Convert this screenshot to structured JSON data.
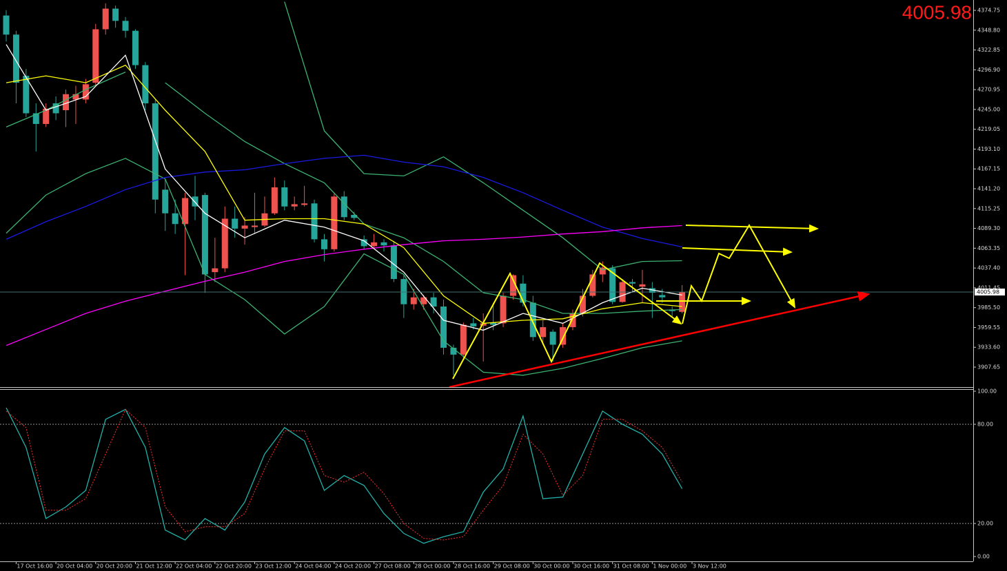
{
  "chart_data": [
    {
      "type": "candlestick",
      "last_price": 4005.98,
      "xlim": [
        -0.624,
        97.29
      ],
      "ylim": [
        3881.5,
        4388.3
      ],
      "yticks": [
        4374.75,
        {
          "value": 4348.8,
          "label": "4348.80"
        },
        4322.85,
        {
          "value": 4296.9,
          "label": "4296.90"
        },
        4270.95,
        {
          "value": 4245,
          "label": "4245.00"
        },
        4219.05,
        {
          "value": 4193.1,
          "label": "4193.10"
        },
        4167.15,
        {
          "value": 4141.2,
          "label": "4141.20"
        },
        4115.25,
        {
          "value": 4089.3,
          "label": "4089.30"
        },
        4063.35,
        {
          "value": 4037.4,
          "label": "4037.40"
        },
        4011.45,
        {
          "value": 3985.5,
          "label": "3985.50"
        },
        3959.55,
        {
          "value": 3933.6,
          "label": "3933.60"
        },
        3907.65
      ],
      "up_color": "#ef5350",
      "down_color": "#26a69a",
      "open": [
        4368,
        4343,
        4289,
        4240,
        4226,
        4253,
        4244,
        4258,
        4258,
        4280,
        4350,
        4377,
        4361,
        4348,
        4303,
        4253,
        4140,
        4109,
        4095,
        4131,
        4133,
        4032,
        4037,
        4102,
        4089,
        4091,
        4093,
        4109,
        4143,
        4118,
        4120,
        4122,
        4075,
        4062,
        4131,
        4107,
        4075,
        4066,
        4071,
        4067,
        4023,
        3990,
        3990,
        3999,
        3987,
        3933,
        3924,
        3965,
        3962,
        3966,
        3965,
        4001,
        4017,
        3992,
        3947,
        3954,
        3937,
        3960,
        3978,
        4001,
        4029,
        4037,
        3993,
        4019,
        4013,
        4011,
        4002,
        3983,
        3980
      ],
      "high": [
        4375,
        4348,
        4298,
        4253,
        4253,
        4262,
        4271,
        4276,
        4285,
        4357,
        4384,
        4381,
        4366,
        4350,
        4307,
        4258,
        4154,
        4127,
        4136,
        4158,
        4136,
        4077,
        4118,
        4118,
        4104,
        4136,
        4131,
        4156,
        4152,
        4131,
        4145,
        4127,
        4082,
        4136,
        4138,
        4111,
        4080,
        4082,
        4075,
        4073,
        4028,
        4010,
        4002,
        4005,
        3996,
        3937,
        3966,
        3972,
        3978,
        3992,
        4005,
        4029,
        4028,
        4001,
        3969,
        3957,
        3965,
        3983,
        4010,
        4035,
        4046,
        4041,
        4023,
        4023,
        4035,
        4019,
        4010,
        3987,
        4015
      ],
      "low": [
        4334,
        4253,
        4235,
        4190,
        4222,
        4231,
        4222,
        4226,
        4253,
        4276,
        4343,
        4352,
        4339,
        4298,
        4244,
        4109,
        4086,
        4082,
        4028,
        4100,
        4005,
        4019,
        4032,
        4077,
        4068,
        4082,
        4091,
        4107,
        4113,
        4113,
        4118,
        4071,
        4046,
        4059,
        4100,
        4100,
        4062,
        4062,
        4059,
        4019,
        3972,
        3983,
        3983,
        3978,
        3924,
        3897,
        3919,
        3957,
        3915,
        3956,
        3960,
        3996,
        3987,
        3942,
        3937,
        3915,
        3933,
        3956,
        3974,
        3999,
        4019,
        3990,
        3992,
        4005,
        3992,
        3972,
        3992,
        3974,
        3978
      ],
      "close": [
        4343,
        4280,
        4240,
        4226,
        4246,
        4240,
        4265,
        4265,
        4278,
        4350,
        4377,
        4361,
        4348,
        4303,
        4253,
        4127,
        4109,
        4095,
        4129,
        4118,
        4029,
        4037,
        4102,
        4089,
        4093,
        4093,
        4109,
        4143,
        4118,
        4121,
        4122,
        4075,
        4062,
        4131,
        4104,
        4103,
        4066,
        4071,
        4067,
        4023,
        3990,
        3999,
        3999,
        3987,
        3933,
        3924,
        3963,
        3961,
        3965,
        3963,
        4001,
        4028,
        3992,
        3947,
        3960,
        3937,
        3960,
        3978,
        4001,
        4029,
        4038,
        3993,
        4019,
        4017,
        4016,
        4005,
        3999,
        3981,
        4005.98
      ],
      "series": [
        {
          "color": "#3cb371",
          "x": [
            0,
            4,
            8,
            12,
            16,
            20,
            24,
            28,
            32,
            36,
            40,
            44,
            48,
            52,
            56,
            60,
            64,
            68
          ],
          "values": [
            4222,
            4244,
            4271,
            4294,
            null,
            null,
            null,
            4386,
            4217,
            4161,
            4158,
            4183,
            4149,
            4113,
            4077,
            4035,
            4046,
            4047
          ]
        },
        {
          "color": "#3cb371",
          "x": [
            0,
            4,
            8,
            12,
            16,
            20,
            24,
            28,
            32,
            36,
            40,
            44,
            48,
            52,
            56,
            60,
            64,
            68
          ],
          "values": [
            null,
            null,
            null,
            null,
            4280,
            4240,
            4203,
            4174,
            4149,
            4095,
            4077,
            4046,
            4005,
            3996,
            3978,
            3978,
            3981,
            3983
          ]
        },
        {
          "color": "#3cb371",
          "x": [
            0,
            4,
            8,
            12,
            16,
            20,
            24,
            28,
            32,
            36,
            40,
            44,
            48,
            52,
            56,
            60,
            64,
            68
          ],
          "values": [
            4083,
            4133,
            4161,
            4181,
            4154,
            4029,
            3996,
            3951,
            3987,
            4056,
            4029,
            3942,
            3901,
            3897,
            3906,
            3919,
            3933,
            3942
          ]
        },
        {
          "color": "#1a1ae6",
          "x": [
            0,
            4,
            8,
            12,
            16,
            20,
            24,
            28,
            32,
            36,
            40,
            44,
            48,
            52,
            56,
            60,
            64,
            68
          ],
          "values": [
            4075,
            4098,
            4118,
            4140,
            4156,
            4163,
            4166,
            4174,
            4181,
            4185,
            4176,
            4170,
            4156,
            4136,
            4113,
            4091,
            4076,
            4065
          ]
        },
        {
          "color": "#ff00ff",
          "x": [
            0,
            4,
            8,
            12,
            16,
            20,
            24,
            28,
            32,
            36,
            40,
            44,
            48,
            52,
            56,
            60,
            64,
            68
          ],
          "values": [
            3936,
            3957,
            3978,
            3994,
            4007,
            4020,
            4032,
            4046,
            4055,
            4062,
            4068,
            4073,
            4075,
            4078,
            4082,
            4085,
            4090,
            4093
          ]
        },
        {
          "color": "#ffff00",
          "x": [
            0,
            4,
            8,
            12,
            16,
            20,
            24,
            28,
            32,
            36,
            40,
            44,
            48,
            52,
            56,
            60,
            64,
            68
          ],
          "values": [
            4280,
            4289,
            4280,
            4303,
            4244,
            4190,
            4100,
            4102,
            4102,
            4095,
            4064,
            4001,
            3965,
            3969,
            3971,
            3984,
            3992,
            3987
          ]
        },
        {
          "color": "#ffffff",
          "x": [
            0,
            4,
            8,
            12,
            16,
            20,
            24,
            28,
            32,
            36,
            40,
            44,
            48,
            52,
            56,
            60,
            64,
            68
          ],
          "values": [
            4330,
            4244,
            4262,
            4316,
            4167,
            4109,
            4077,
            4100,
            4091,
            4073,
            4032,
            3969,
            3956,
            3978,
            3965,
            3992,
            4011,
            4002
          ]
        }
      ]
    },
    {
      "type": "line",
      "xlim": [
        -0.624,
        97.29
      ],
      "ylim": [
        0,
        100
      ],
      "yticks": [
        {
          "value": 100,
          "label": "100.00"
        },
        {
          "value": 80,
          "label": "80.00"
        },
        {
          "value": 20,
          "label": "20.00"
        },
        {
          "value": 0,
          "label": "0.00"
        }
      ],
      "xticks": [
        {
          "value": 1,
          "label": "17 Oct 16:00"
        },
        {
          "value": 5,
          "label": "20 Oct 04:00"
        },
        {
          "value": 9,
          "label": "20 Oct 20:00"
        },
        {
          "value": 13,
          "label": "21 Oct 12:00"
        },
        {
          "value": 17,
          "label": "22 Oct 04:00"
        },
        {
          "value": 21,
          "label": "22 Oct 20:00"
        },
        {
          "value": 25,
          "label": "23 Oct 12:00"
        },
        {
          "value": 29,
          "label": "24 Oct 04:00"
        },
        {
          "value": 33,
          "label": "24 Oct 20:00"
        },
        {
          "value": 37,
          "label": "27 Oct 08:00"
        },
        {
          "value": 41,
          "label": "28 Oct 00:00"
        },
        {
          "value": 45,
          "label": "28 Oct 16:00"
        },
        {
          "value": 49,
          "label": "29 Oct 08:00"
        },
        {
          "value": 53,
          "label": "30 Oct 00:00"
        },
        {
          "value": 57,
          "label": "30 Oct 16:00"
        },
        {
          "value": 61,
          "label": "31 Oct 08:00"
        },
        {
          "value": 65,
          "label": "1 Nov 00:00"
        },
        {
          "value": 69,
          "label": "3 Nov 12:00"
        }
      ],
      "series": [
        {
          "color": "#20b2aa",
          "style": "solid",
          "x": [
            0,
            2,
            4,
            6,
            8,
            10,
            12,
            14,
            16,
            18,
            20,
            22,
            24,
            26,
            28,
            30,
            32,
            34,
            36,
            38,
            40,
            42,
            44,
            46,
            48,
            50,
            52,
            54,
            56,
            58,
            60,
            62,
            64,
            66,
            68
          ],
          "values": [
            90,
            66,
            23,
            30,
            40,
            83,
            89,
            66,
            16,
            10,
            23,
            16,
            33,
            62,
            78,
            70,
            40,
            49,
            43,
            26,
            14,
            8,
            12,
            15,
            39,
            53,
            85,
            35,
            36,
            62,
            88,
            80,
            74,
            62,
            41
          ]
        },
        {
          "color": "#ff3030",
          "style": "dotted",
          "x": [
            0,
            2,
            4,
            6,
            8,
            10,
            12,
            14,
            16,
            18,
            20,
            22,
            24,
            26,
            28,
            30,
            32,
            34,
            36,
            38,
            40,
            42,
            44,
            46,
            48,
            50,
            52,
            54,
            56,
            58,
            60,
            62,
            64,
            66,
            68
          ],
          "values": [
            88,
            78,
            28,
            28,
            35,
            62,
            89,
            78,
            30,
            15,
            18,
            18,
            26,
            53,
            76,
            76,
            49,
            45,
            51,
            38,
            20,
            11,
            10,
            12,
            28,
            43,
            74,
            62,
            37,
            49,
            83,
            83,
            76,
            66,
            45
          ]
        }
      ]
    }
  ]
}
